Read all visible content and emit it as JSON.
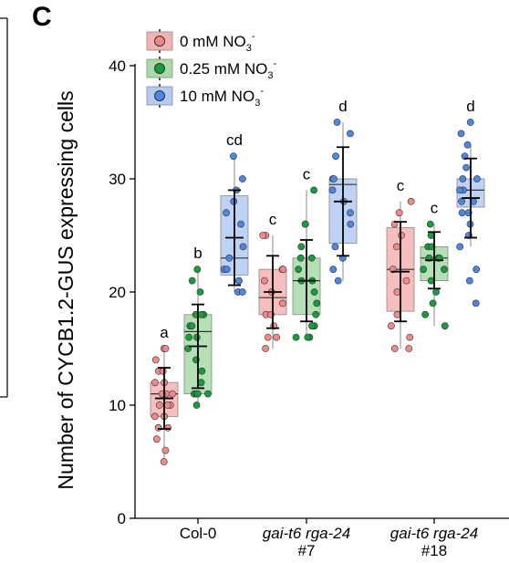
{
  "panel_letter": "C",
  "chart_data": {
    "type": "box",
    "ylabel": "Number of CYCB1.2-GUS expressing cells",
    "xlabel": "",
    "ylim": [
      0,
      40
    ],
    "yticks": [
      0,
      10,
      20,
      30,
      40
    ],
    "grid": false,
    "legend_position": "top-left",
    "categories": [
      {
        "line1": "Col-0",
        "line2": "",
        "italic": false
      },
      {
        "line1": "gai-t6 rga-24",
        "line2": "#7",
        "italic": true
      },
      {
        "line1": "gai-t6 rga-24",
        "line2": "#18",
        "italic": true
      }
    ],
    "series": [
      {
        "name": "0 mM NO3-",
        "legend_main": "0 mM NO",
        "legend_sub": "3",
        "legend_sup": "-",
        "color": "#f08a8a",
        "box_fill": "#f4b3b3",
        "groups": [
          {
            "q1": 9,
            "median": 11,
            "q3": 12,
            "whisker_low": 5,
            "whisker_high": 15,
            "mean": 10.6,
            "sd": 2.7,
            "letter": "a",
            "points": [
              15,
              15,
              14,
              13,
              13,
              12,
              12,
              11,
              11,
              11,
              10,
              10,
              10,
              9,
              9,
              8,
              8,
              7,
              6,
              5
            ]
          },
          {
            "q1": 18,
            "median": 19.5,
            "q3": 22,
            "whisker_low": 15,
            "whisker_high": 25,
            "mean": 20,
            "sd": 3.2,
            "letter": "c",
            "points": [
              25,
              25,
              22,
              22,
              21,
              20,
              19,
              18,
              18,
              17,
              16,
              16,
              15
            ]
          },
          {
            "q1": 18.3,
            "median": 22,
            "q3": 25.7,
            "whisker_low": 15,
            "whisker_high": 28,
            "mean": 21.8,
            "sd": 4.4,
            "letter": "c",
            "points": [
              28,
              27,
              26,
              25,
              24,
              22,
              21,
              20,
              18,
              17,
              16,
              15,
              15
            ]
          }
        ]
      },
      {
        "name": "0.25 mM NO3-",
        "legend_main": "0.25 mM NO",
        "legend_sub": "3",
        "legend_sup": "-",
        "color": "#1a9b3c",
        "box_fill": "#a8dba8",
        "groups": [
          {
            "q1": 11,
            "median": 16.5,
            "q3": 18,
            "whisker_low": 10,
            "whisker_high": 22,
            "mean": 15.2,
            "sd": 3.7,
            "letter": "b",
            "points": [
              22,
              21,
              20,
              18,
              18,
              18,
              17,
              17,
              16,
              16,
              15,
              14,
              13,
              12,
              11,
              11,
              11,
              11,
              10
            ]
          },
          {
            "q1": 18,
            "median": 21,
            "q3": 23,
            "whisker_low": 16,
            "whisker_high": 29,
            "mean": 21,
            "sd": 3.6,
            "letter": "c",
            "points": [
              29,
              26,
              26,
              24,
              23,
              23,
              22,
              21,
              21,
              20,
              19,
              18,
              17,
              17,
              16,
              16,
              16
            ]
          },
          {
            "q1": 21,
            "median": 23,
            "q3": 24,
            "whisker_low": 17,
            "whisker_high": 26,
            "mean": 22.8,
            "sd": 2.5,
            "letter": "c",
            "points": [
              26,
              25,
              24,
              24,
              23,
              23,
              23,
              22,
              22,
              21,
              20,
              19,
              18,
              17
            ]
          }
        ]
      },
      {
        "name": "10 mM NO3-",
        "legend_main": "10 mM NO",
        "legend_sub": "3",
        "legend_sup": "-",
        "color": "#4f86e0",
        "box_fill": "#b4caf2",
        "groups": [
          {
            "q1": 21.5,
            "median": 23,
            "q3": 28.5,
            "whisker_low": 20,
            "whisker_high": 32,
            "mean": 24.8,
            "sd": 4.2,
            "letter": "cd",
            "points": [
              32,
              30,
              29,
              28,
              27,
              26,
              24,
              23,
              22,
              22,
              21,
              21,
              20,
              20
            ]
          },
          {
            "q1": 24.3,
            "median": 29.5,
            "q3": 30,
            "whisker_low": 21,
            "whisker_high": 35,
            "mean": 28,
            "sd": 4.8,
            "letter": "d",
            "points": [
              35,
              34,
              32,
              30,
              30,
              29,
              28,
              27,
              26,
              24,
              23,
              22,
              21
            ]
          },
          {
            "q1": 27.5,
            "median": 29,
            "q3": 30,
            "whisker_low": 24,
            "whisker_high": 33,
            "mean": 28.3,
            "sd": 3.5,
            "letter": "d",
            "points": [
              35,
              34,
              33,
              32,
              31,
              30,
              30,
              29,
              29,
              28,
              28,
              27,
              27,
              26,
              25,
              24,
              22,
              21,
              19
            ]
          }
        ]
      }
    ]
  }
}
